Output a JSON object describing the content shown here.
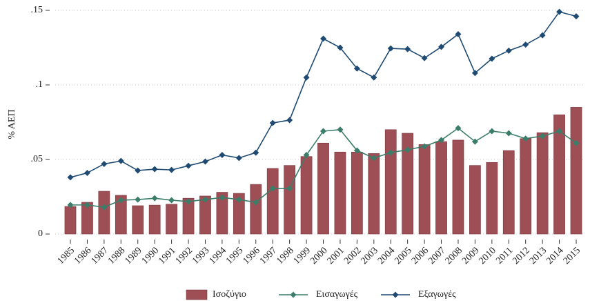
{
  "chart_data": {
    "type": "bar",
    "ylabel": "% ΑΕΠ",
    "categories": [
      "1985",
      "1986",
      "1987",
      "1988",
      "1989",
      "1990",
      "1991",
      "1992",
      "1993",
      "1994",
      "1995",
      "1996",
      "1997",
      "1998",
      "1999",
      "2000",
      "2001",
      "2002",
      "2003",
      "2004",
      "2005",
      "2006",
      "2007",
      "2008",
      "2009",
      "2010",
      "2011",
      "2012",
      "2013",
      "2014",
      "2015"
    ],
    "series": [
      {
        "name": "Ισοζύγιο",
        "type": "bar",
        "color": "#9e4f56",
        "values": [
          0.0185,
          0.0213,
          0.0287,
          0.026,
          0.019,
          0.0194,
          0.02,
          0.024,
          0.0255,
          0.028,
          0.0273,
          0.0333,
          0.044,
          0.046,
          0.052,
          0.061,
          0.055,
          0.055,
          0.054,
          0.07,
          0.0676,
          0.06,
          0.062,
          0.063,
          0.046,
          0.048,
          0.056,
          0.064,
          0.068,
          0.08,
          0.085
        ]
      },
      {
        "name": "Εισαγωγές",
        "type": "line",
        "color": "#3b7d69",
        "values": [
          0.0195,
          0.0195,
          0.018,
          0.0227,
          0.0231,
          0.024,
          0.0227,
          0.0218,
          0.0231,
          0.0245,
          0.0231,
          0.0213,
          0.0306,
          0.0306,
          0.053,
          0.069,
          0.07,
          0.056,
          0.051,
          0.0546,
          0.0565,
          0.0588,
          0.063,
          0.071,
          0.062,
          0.069,
          0.0676,
          0.064,
          0.0657,
          0.069,
          0.061
        ]
      },
      {
        "name": "Εξαγωγές",
        "type": "line",
        "color": "#1f4a72",
        "values": [
          0.038,
          0.041,
          0.047,
          0.049,
          0.0426,
          0.0435,
          0.043,
          0.0458,
          0.0486,
          0.053,
          0.051,
          0.0546,
          0.0745,
          0.0764,
          0.105,
          0.131,
          0.125,
          0.111,
          0.105,
          0.1245,
          0.124,
          0.118,
          0.1255,
          0.134,
          0.108,
          0.1176,
          0.123,
          0.127,
          0.1333,
          0.149,
          0.146
        ]
      }
    ],
    "ylim": [
      0,
      0.15
    ],
    "yticks": [
      0,
      {
        "value": 0.05,
        "label": ".05"
      },
      {
        "value": 0.1,
        "label": ".1"
      },
      {
        "value": 0.15,
        "label": ".15"
      }
    ],
    "grid": true
  }
}
